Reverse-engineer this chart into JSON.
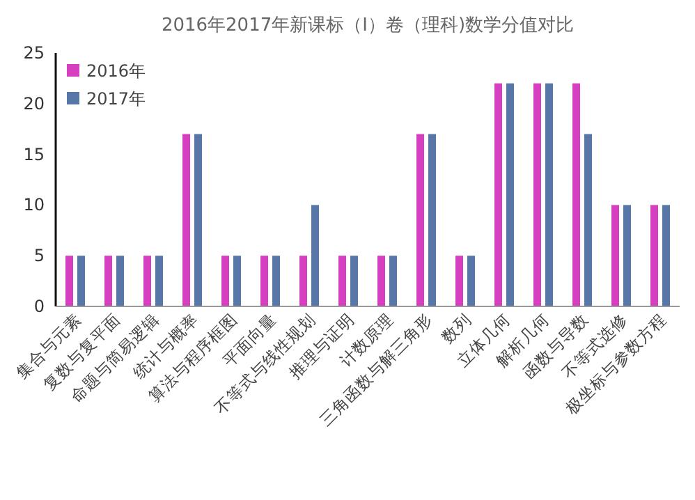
{
  "chart_data": {
    "type": "bar",
    "title": "2016年2017年新课标（Ⅰ）卷（理科)数学分值对比",
    "categories": [
      "集合与元素",
      "复数与复平面",
      "命题与简易逻辑",
      "统计与概率",
      "算法与程序框图",
      "平面向量",
      "不等式与线性规划",
      "推理与证明",
      "计数原理",
      "三角函数与解三角形",
      "数列",
      "立体几何",
      "解析几何",
      "函数与导数",
      "不等式选修",
      "极坐标与参数方程"
    ],
    "series": [
      {
        "name": "2016年",
        "color": "#d63fbf",
        "values": [
          5,
          5,
          5,
          17,
          5,
          5,
          5,
          5,
          5,
          17,
          5,
          22,
          22,
          22,
          10,
          10
        ]
      },
      {
        "name": "2017年",
        "color": "#5677a8",
        "values": [
          5,
          5,
          5,
          17,
          5,
          5,
          10,
          5,
          5,
          17,
          5,
          22,
          22,
          17,
          10,
          10
        ]
      }
    ],
    "ylim": [
      0,
      25
    ],
    "yticks": [
      0,
      5,
      10,
      15,
      20,
      25
    ],
    "legend": "top left",
    "grid": false
  }
}
